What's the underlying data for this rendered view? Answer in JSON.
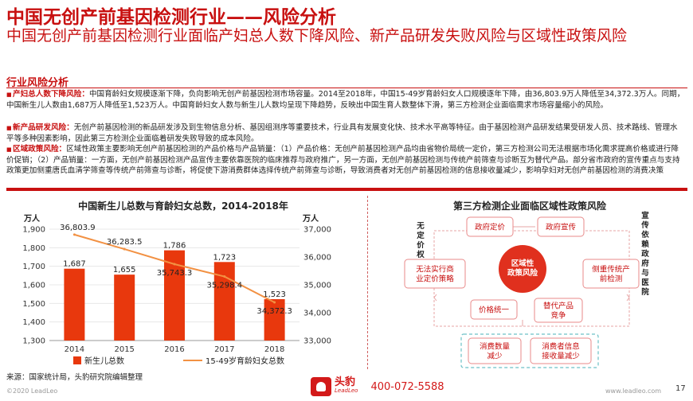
{
  "header": {
    "title": "中国无创产前基因检测行业——风险分析",
    "subtitle": "中国无创产前基因检测行业面临产妇总人数下降风险、新产品研发失败风险与区域性政策风险"
  },
  "section": {
    "title": "行业风险分析"
  },
  "risks": [
    {
      "name": "产妇总人数下降风险：",
      "text": "中国育龄妇女规模逐渐下降，负向影响无创产前基因检测市场容量。2014至2018年，中国15-49岁育龄妇女人口规模逐年下降，由36,803.9万人降低至34,372.3万人。同期，中国新生儿人数由1,687万人降低至1,523万人。中国育龄妇女人数与新生儿人数均呈现下降趋势，反映出中国生育人数整体下滑，第三方检测企业面临需求市场容量缩小的风险。"
    },
    {
      "name": "新产品研发风险：",
      "text": "无创产前基因检测的新品研发涉及到生物信息分析、基因组测序等重要技术，行业具有发展变化快、技术水平高等特征。由于基因检测产品研发结果受研发人员、技术路线、管理水平等多种因素影响，因此第三方检测企业面临着研发失败导致的成本风险。"
    },
    {
      "name": "区域政策风险：",
      "text": "区域性政策主要影响无创产前基因检测的产品价格与产品销量：（1）产品价格：无创产前基因检测产品均由省物价局统一定价，第三方检测公司无法根据市场化需求提高价格或进行降价促销；（2）产品销量：一方面，无创产前基因检测产品宣传主要依靠医院的临床推荐与政府推广，另一方面，无创产前基因检测与传统产前筛查与诊断互为替代产品。部分省市政府的宣传重点与支持政策更加侧重唐氏血清学筛查等传统产前筛查与诊断，将促使下游消费群体选择传统产前筛查与诊断，导致消费者对无创产前基因检测的信息接收量减少，影响孕妇对无创产前基因检测的消费决策"
    }
  ],
  "chart_data": {
    "type": "bar",
    "title": "中国新生儿总数与育龄妇女总数，2014-2018年",
    "categories": [
      "2014",
      "2015",
      "2016",
      "2017",
      "2018"
    ],
    "series": [
      {
        "name": "新生儿总数",
        "type": "bar",
        "axis": "left",
        "color": "#e8380d",
        "values": [
          1687,
          1655,
          1786,
          1723,
          1523
        ],
        "labels": [
          "1,687",
          "1,655",
          "1,786",
          "1,723",
          "1,523"
        ]
      },
      {
        "name": "15-49岁育龄妇女总数",
        "type": "line",
        "axis": "right",
        "color": "#f29143",
        "values": [
          36803.9,
          36283.5,
          35743.3,
          35298.4,
          34372.3
        ],
        "labels": [
          "36,803.9",
          "36,283.5",
          "35,743.3",
          "35,298.4",
          "34,372.3"
        ]
      }
    ],
    "left_axis": {
      "unit": "万人",
      "min": 1300,
      "max": 1900,
      "ticks": [
        "1,300",
        "1,400",
        "1,500",
        "1,600",
        "1,700",
        "1,800",
        "1,900"
      ]
    },
    "right_axis": {
      "unit": "万人",
      "min": 33000,
      "max": 37000,
      "ticks": [
        "33,000",
        "34,000",
        "35,000",
        "36,000",
        "37,000"
      ]
    },
    "grid": true,
    "legend": "bottom"
  },
  "diagram": {
    "title": "第三方检测企业面临区域性政策风险",
    "left_label": "无定价权",
    "right_label": "宣传依赖政府与医院",
    "center": "区域性政策风险",
    "nodes": {
      "price_set": "政府定价",
      "promo": "政府宣传",
      "no_market_price": "无法实行商业定价策略",
      "hospital_promo": "侧重传统产前检测",
      "uniform_price": "价格统一",
      "substitute": "替代产品竞争",
      "consumer_drop": "消费数量减少",
      "info_drop": "消费者信息接收量减少"
    },
    "node_lines": {
      "no_market_price": [
        "无法实行商",
        "业定价策略"
      ],
      "hospital_promo": [
        "侧重传统产",
        "前检测"
      ],
      "substitute": [
        "替代产品",
        "竞争"
      ],
      "consumer_drop": [
        "消费数量",
        "减少"
      ],
      "info_drop": [
        "消费者信息",
        "接收量减少"
      ]
    },
    "center_lines": [
      "区域性",
      "政策风险"
    ]
  },
  "footer": {
    "source": "来源：国家统计局，头豹研究院编辑整理",
    "copyright": "©2020 LeadLeo",
    "brand": "头豹",
    "brand_sub": "LeadLeo",
    "phone": "400-072-5588",
    "url": "www.leadleo.com",
    "page": "17"
  },
  "colors": {
    "accent": "#c81010",
    "bar": "#e8380d",
    "line": "#f29143",
    "node_border": "#e88a8a",
    "center_fill": "#e0301e",
    "dashed_box": "#6cc0c6"
  }
}
